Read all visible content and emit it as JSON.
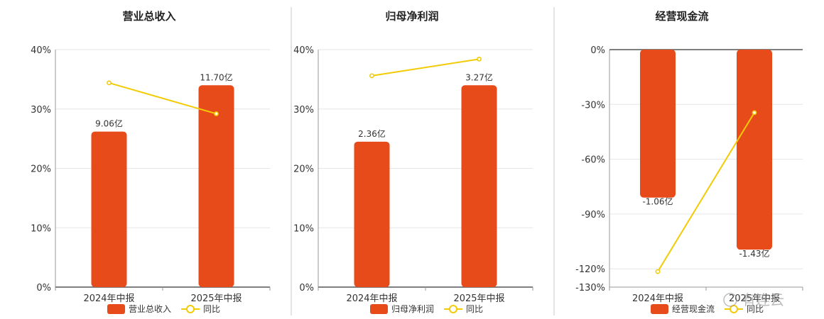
{
  "chart_data": [
    {
      "type": "bar",
      "title": "营业总收入",
      "categories": [
        "2024年中报",
        "2025年中报"
      ],
      "yticks": [
        "0%",
        "10%",
        "20%",
        "30%",
        "40%"
      ],
      "ylim": [
        0,
        40
      ],
      "series": [
        {
          "name": "营业总收入",
          "type": "bar",
          "values": [
            26.2,
            34.0
          ],
          "labels": [
            "9.06亿",
            "11.70亿"
          ]
        },
        {
          "name": "同比",
          "type": "line",
          "values": [
            34.4,
            29.2
          ]
        }
      ],
      "grid": true,
      "legend": "bottom"
    },
    {
      "type": "bar",
      "title": "归母净利润",
      "categories": [
        "2024年中报",
        "2025年中报"
      ],
      "yticks": [
        "0%",
        "10%",
        "20%",
        "30%",
        "40%"
      ],
      "ylim": [
        0,
        40
      ],
      "series": [
        {
          "name": "归母净利润",
          "type": "bar",
          "values": [
            24.5,
            34.0
          ],
          "labels": [
            "2.36亿",
            "3.27亿"
          ]
        },
        {
          "name": "同比",
          "type": "line",
          "values": [
            35.6,
            38.4
          ]
        }
      ],
      "grid": true,
      "legend": "bottom"
    },
    {
      "type": "bar",
      "title": "经营现金流",
      "categories": [
        "2024年中报",
        "2025年中报"
      ],
      "yticks": [
        "0%",
        "-30%",
        "-60%",
        "-90%",
        "-120%",
        "-130%"
      ],
      "ytick_values": [
        0,
        -30,
        -60,
        -90,
        -120,
        -130
      ],
      "ylim": [
        -130,
        0
      ],
      "series": [
        {
          "name": "经营现金流",
          "type": "bar",
          "values": [
            -81.0,
            -109.5
          ],
          "labels": [
            "-1.06亿",
            "-1.43亿"
          ]
        },
        {
          "name": "同比",
          "type": "line",
          "values": [
            -121.5,
            -34.5
          ]
        }
      ],
      "grid": true,
      "legend": "bottom"
    }
  ],
  "colors": {
    "bar": "#E84B1A",
    "line": "#F2CB05",
    "grid": "#e6e6e6",
    "axis": "#555555"
  },
  "watermark": "有连云"
}
